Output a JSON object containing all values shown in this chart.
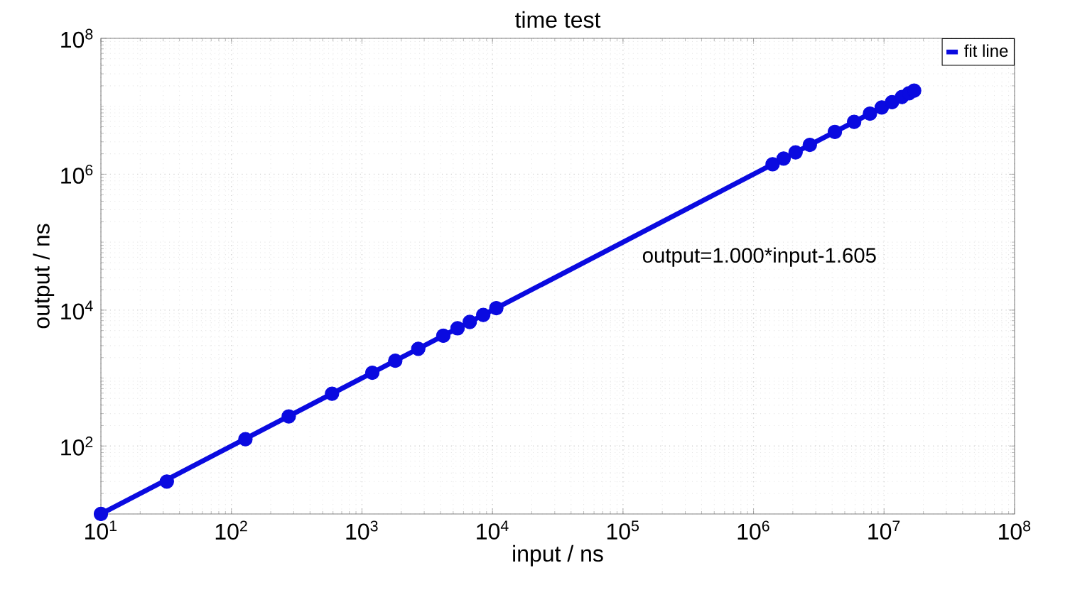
{
  "chart_data": {
    "type": "scatter",
    "title": "time  test",
    "xlabel": "input / ns",
    "ylabel": "output / ns",
    "log": "xy",
    "grid": true,
    "legend": "top right",
    "annotations": [
      "output=1.000*input-1.605"
    ],
    "xlim": [
      10,
      100000000
    ],
    "ylim": [
      10,
      100000000
    ],
    "xticks": [
      {
        "value": 10,
        "label": "10$^{1}$"
      },
      {
        "value": 100,
        "label": "10$^{2}$"
      },
      {
        "value": 1000,
        "label": "10$^{3}$"
      },
      {
        "value": 10000,
        "label": "10$^{4}$"
      },
      {
        "value": 100000,
        "label": "10$^{5}$"
      },
      {
        "value": 1000000,
        "label": "10$^{6}$"
      },
      {
        "value": 10000000,
        "label": "10$^{7}$"
      },
      {
        "value": 100000000,
        "label": "10$^{8}$"
      }
    ],
    "yticks": [
      {
        "value": 100,
        "label": "10$^{2}$"
      },
      {
        "value": 10000,
        "label": "10$^{4}$"
      },
      {
        "value": 1000000,
        "label": "10$^{6}$"
      },
      {
        "value": 100000000,
        "label": "10$^{8}$"
      }
    ],
    "series": [
      {
        "color": "#0a0ae0",
        "x": [
          10,
          32,
          128,
          275,
          590,
          1200,
          1800,
          2700,
          4200,
          5400,
          6700,
          8500,
          10700,
          1400000,
          1700000,
          2100000,
          2700000,
          4200000,
          5900000,
          7800000,
          9600000,
          11500000,
          13700000,
          15500000,
          17000000
        ],
        "values": [
          10,
          30,
          126,
          273,
          588,
          1198,
          1798,
          2698,
          4198,
          5398,
          6698,
          8498,
          10698,
          1400000,
          1700000,
          2100000,
          2700000,
          4200000,
          5900000,
          7800000,
          9600000,
          11500000,
          13700000,
          15500000,
          17000000
        ]
      },
      {
        "type": "line",
        "name": "fit line",
        "color": "#0a0ae0",
        "line_style": "solid",
        "x": [
          10,
          17000000
        ],
        "values": [
          10,
          17000000
        ]
      }
    ]
  }
}
